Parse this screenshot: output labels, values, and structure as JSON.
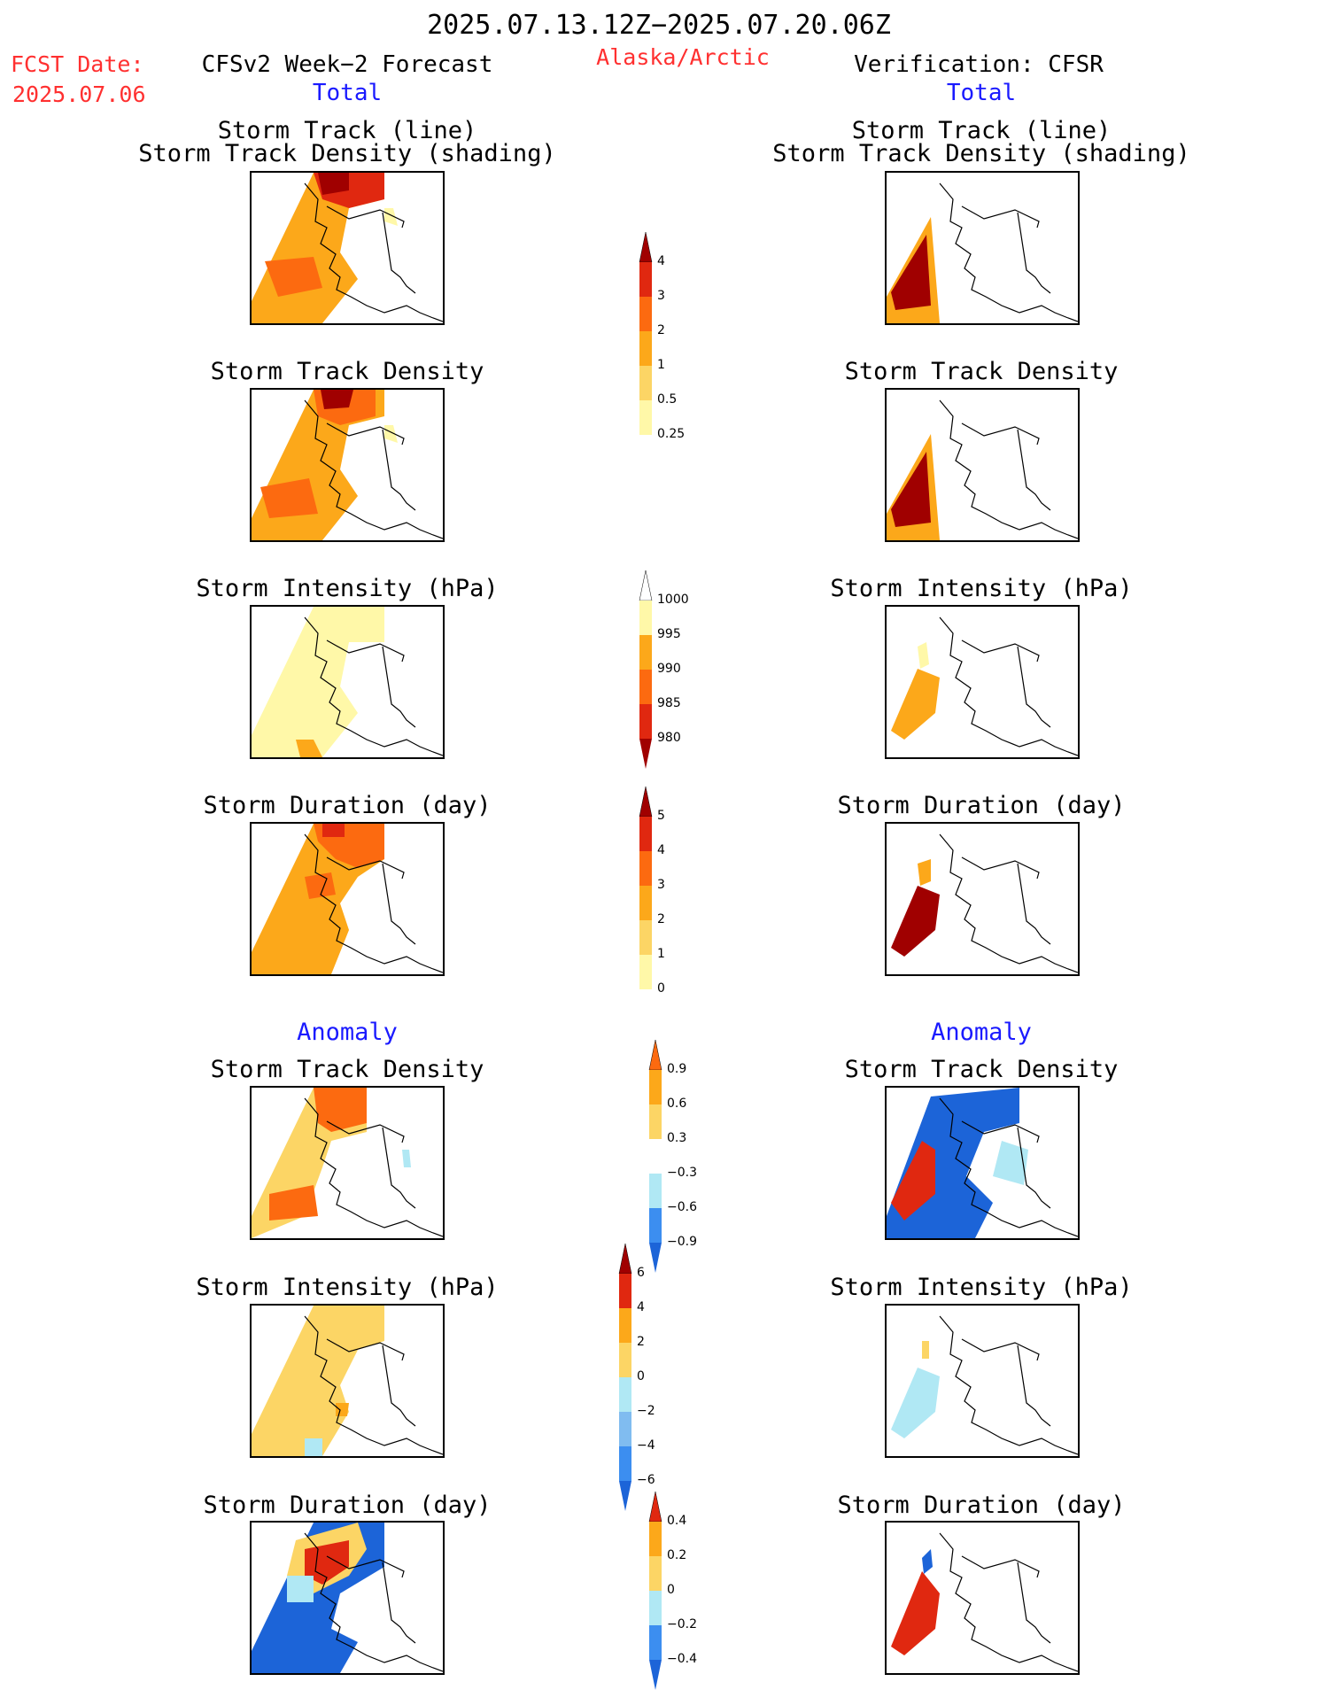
{
  "header": {
    "date_range": "2025.07.13.12Z−2025.07.20.06Z",
    "fcst_label": "FCST Date:",
    "fcst_date": "2025.07.06",
    "forecast_title": "CFSv2 Week−2 Forecast",
    "region": "Alaska/Arctic",
    "verification_title": "Verification: CFSR"
  },
  "sections": {
    "total_label": "Total",
    "anomaly_label": "Anomaly"
  },
  "panel_titles": {
    "storm_track_line": "Storm Track (line)",
    "storm_track_density_shading": "Storm Track Density (shading)",
    "storm_track_density": "Storm Track Density",
    "storm_intensity": "Storm Intensity (hPa)",
    "storm_duration": "Storm Duration (day)"
  },
  "colorbars": {
    "track_density_total": [
      "4",
      "3",
      "2",
      "1",
      "0.5",
      "0.25"
    ],
    "intensity_total": [
      "1000",
      "995",
      "990",
      "985",
      "980"
    ],
    "duration_total": [
      "5",
      "4",
      "3",
      "2",
      "1",
      "0"
    ],
    "track_density_anom": [
      "0.9",
      "0.6",
      "0.3",
      "−0.3",
      "−0.6",
      "−0.9"
    ],
    "intensity_anom": [
      "6",
      "4",
      "2",
      "0",
      "−2",
      "−4",
      "−6"
    ],
    "duration_anom": [
      "0.4",
      "0.2",
      "0",
      "−0.2",
      "−0.4"
    ]
  },
  "colors": {
    "warm": [
      "#fff8a8",
      "#fcd565",
      "#fca81a",
      "#fc6a10",
      "#e02810",
      "#a00000"
    ],
    "cool": [
      "#b0e8f4",
      "#80bcf0",
      "#3c8ef0",
      "#1c64d8"
    ],
    "header_red": "#ff3030",
    "header_blue": "#1a1aff"
  }
}
